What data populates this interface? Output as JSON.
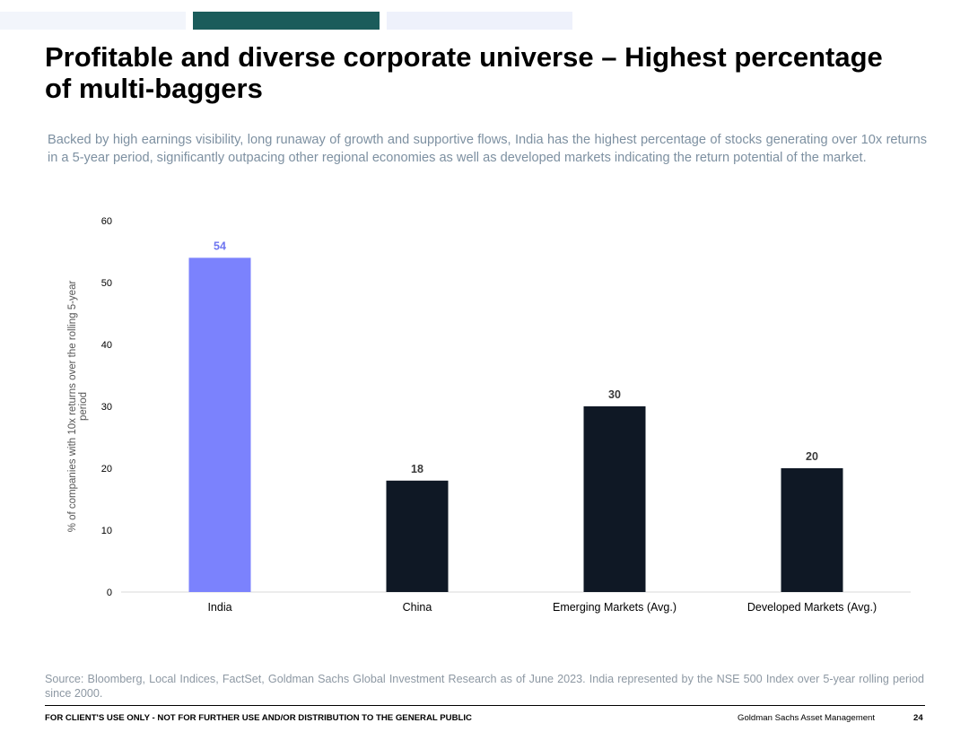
{
  "header": {
    "title": "Profitable and diverse corporate universe – Highest percentage of multi-baggers",
    "subtitle": "Backed by high earnings visibility, long runaway of growth and supportive flows, India has the highest percentage of stocks generating over 10x returns in a 5-year period, significantly outpacing other regional economies as well as developed markets indicating the return potential of the market."
  },
  "chart_data": {
    "type": "bar",
    "categories": [
      "India",
      "China",
      "Emerging Markets (Avg.)",
      "Developed Markets (Avg.)"
    ],
    "values": [
      54,
      18,
      30,
      20
    ],
    "colors": [
      "#7b82fd",
      "#0f1825",
      "#0f1825",
      "#0f1825"
    ],
    "label_colors": [
      "#6f76f0",
      "#3a3a3a",
      "#3a3a3a",
      "#3a3a3a"
    ],
    "ylabel": "% of companies with 10x returns over the rolling 5-year period",
    "ylim": [
      0,
      60
    ],
    "yticks": [
      0,
      10,
      20,
      30,
      40,
      50,
      60
    ],
    "grid": false,
    "legend": "none"
  },
  "footer": {
    "source": "Source: Bloomberg, Local Indices, FactSet, Goldman Sachs Global Investment Research as of June 2023. India represented by the NSE 500 Index over 5-year rolling period since 2000.",
    "disclaimer": "FOR CLIENT'S USE ONLY - NOT FOR FURTHER USE AND/OR DISTRIBUTION TO THE GENERAL PUBLIC",
    "brand": "Goldman Sachs Asset Management",
    "page_number": "24"
  }
}
